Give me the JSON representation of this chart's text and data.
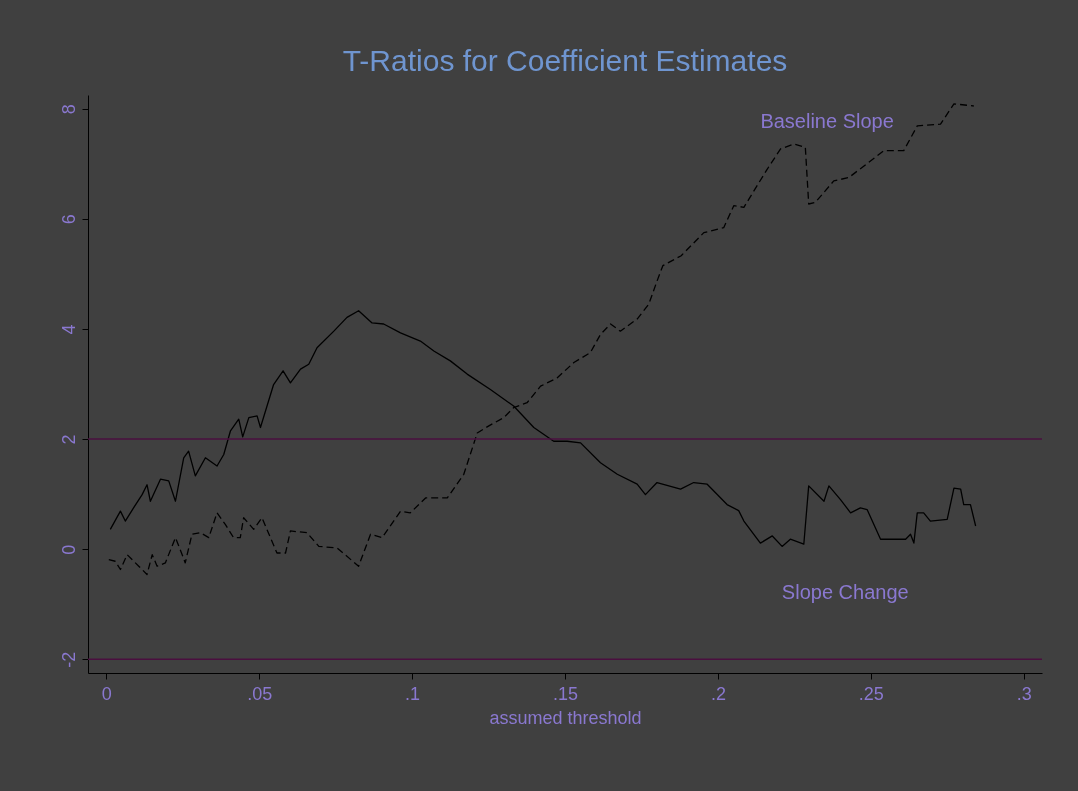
{
  "chart_data": {
    "type": "line",
    "title": "T-Ratios for Coefficient Estimates",
    "xlabel": "assumed threshold",
    "xlim": [
      -0.006,
      0.306
    ],
    "ylim": [
      -2.25,
      8.25
    ],
    "xticks": [
      0,
      {
        "value": 0.05,
        "label": ".05"
      },
      {
        "value": 0.1,
        "label": ".1"
      },
      {
        "value": 0.15,
        "label": ".15"
      },
      {
        "value": 0.2,
        "label": ".2"
      },
      {
        "value": 0.25,
        "label": ".25"
      },
      {
        "value": 0.3,
        "label": ".3"
      }
    ],
    "yticks": [
      -2,
      0,
      2,
      4,
      6,
      8
    ],
    "grid": false,
    "marker": "none",
    "ref_lines": [
      {
        "axis": "y",
        "value": 2,
        "color": "#4a0f3f"
      },
      {
        "axis": "y",
        "value": -2,
        "color": "#4a0f3f"
      }
    ],
    "series": [
      {
        "name": "Baseline Slope",
        "color": "#000000",
        "line_style": "dashed",
        "x": [
          0.0008,
          0.0029,
          0.0046,
          0.0068,
          0.0106,
          0.0133,
          0.015,
          0.0166,
          0.0193,
          0.0226,
          0.0248,
          0.0258,
          0.028,
          0.0307,
          0.0335,
          0.0362,
          0.0389,
          0.0416,
          0.0438,
          0.0449,
          0.0482,
          0.0509,
          0.0558,
          0.0586,
          0.0602,
          0.0656,
          0.0695,
          0.0755,
          0.0825,
          0.0864,
          0.0902,
          0.0962,
          0.0994,
          0.1044,
          0.1115,
          0.1169,
          0.1213,
          0.1251,
          0.13,
          0.1332,
          0.1376,
          0.142,
          0.1474,
          0.1529,
          0.1583,
          0.1616,
          0.1649,
          0.1681,
          0.1736,
          0.1774,
          0.1801,
          0.182,
          0.188,
          0.1954,
          0.2019,
          0.2052,
          0.2085,
          0.2161,
          0.2205,
          0.2248,
          0.2286,
          0.2297,
          0.2319,
          0.2379,
          0.2428,
          0.2499,
          0.2543,
          0.2608,
          0.2652,
          0.2728,
          0.2772,
          0.2837
        ],
        "values": [
          -0.19,
          -0.22,
          -0.37,
          -0.1,
          -0.31,
          -0.46,
          -0.1,
          -0.31,
          -0.25,
          0.21,
          -0.1,
          -0.25,
          0.27,
          0.3,
          0.21,
          0.66,
          0.45,
          0.21,
          0.21,
          0.57,
          0.36,
          0.57,
          -0.07,
          -0.07,
          0.33,
          0.3,
          0.05,
          0.02,
          -0.31,
          0.27,
          0.21,
          0.69,
          0.66,
          0.93,
          0.93,
          1.36,
          2.11,
          2.24,
          2.39,
          2.57,
          2.66,
          2.96,
          3.11,
          3.39,
          3.57,
          3.9,
          4.09,
          3.96,
          4.18,
          4.45,
          4.87,
          5.15,
          5.33,
          5.75,
          5.84,
          6.24,
          6.21,
          6.9,
          7.27,
          7.36,
          7.3,
          6.27,
          6.3,
          6.69,
          6.75,
          7.05,
          7.24,
          7.24,
          7.69,
          7.72,
          8.09,
          8.05
        ]
      },
      {
        "name": "Slope Change",
        "color": "#000000",
        "line_style": "solid",
        "x": [
          0.0013,
          0.0046,
          0.0062,
          0.0089,
          0.0117,
          0.0133,
          0.0144,
          0.0177,
          0.0204,
          0.0226,
          0.0253,
          0.0269,
          0.0291,
          0.0324,
          0.0362,
          0.0384,
          0.0406,
          0.0433,
          0.0446,
          0.0466,
          0.0493,
          0.0504,
          0.0547,
          0.0578,
          0.0602,
          0.0635,
          0.0662,
          0.0689,
          0.0744,
          0.0787,
          0.0825,
          0.0869,
          0.0907,
          0.0962,
          0.1027,
          0.1071,
          0.1125,
          0.118,
          0.1256,
          0.1332,
          0.1398,
          0.1463,
          0.1507,
          0.1551,
          0.1616,
          0.1671,
          0.1736,
          0.1763,
          0.1801,
          0.1878,
          0.1921,
          0.1965,
          0.203,
          0.2068,
          0.2085,
          0.2139,
          0.2178,
          0.221,
          0.2237,
          0.2281,
          0.2297,
          0.2347,
          0.2363,
          0.2401,
          0.2434,
          0.2466,
          0.2488,
          0.2532,
          0.2614,
          0.263,
          0.2641,
          0.2652,
          0.2673,
          0.2695,
          0.275,
          0.2772,
          0.2794,
          0.2804,
          0.2826,
          0.2843
        ],
        "values": [
          0.36,
          0.69,
          0.51,
          0.75,
          0.99,
          1.17,
          0.87,
          1.27,
          1.24,
          0.87,
          1.66,
          1.78,
          1.33,
          1.66,
          1.51,
          1.72,
          2.15,
          2.36,
          2.04,
          2.39,
          2.42,
          2.21,
          2.99,
          3.24,
          3.02,
          3.27,
          3.36,
          3.66,
          3.96,
          4.21,
          4.33,
          4.11,
          4.09,
          3.93,
          3.78,
          3.6,
          3.42,
          3.18,
          2.9,
          2.6,
          2.21,
          1.96,
          1.96,
          1.93,
          1.57,
          1.36,
          1.18,
          0.99,
          1.21,
          1.09,
          1.21,
          1.18,
          0.81,
          0.7,
          0.51,
          0.11,
          0.24,
          0.05,
          0.18,
          0.09,
          1.15,
          0.87,
          1.15,
          0.9,
          0.66,
          0.75,
          0.72,
          0.18,
          0.18,
          0.27,
          0.11,
          0.66,
          0.66,
          0.51,
          0.54,
          1.11,
          1.09,
          0.81,
          0.81,
          0.42
        ]
      }
    ]
  }
}
